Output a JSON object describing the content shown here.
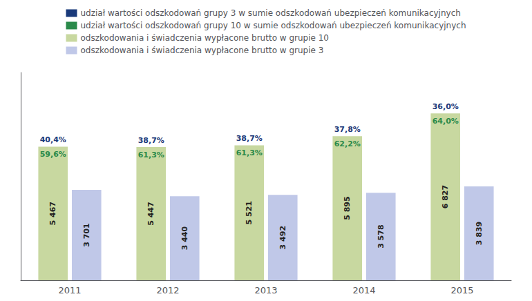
{
  "chart_data": {
    "type": "bar",
    "categories": [
      "2011",
      "2012",
      "2013",
      "2014",
      "2015"
    ],
    "series": [
      {
        "name": "udział wartości odszkodowań grupy 3 w sumie odszkodowań ubezpieczeń komunikacyjnych",
        "type": "text",
        "color": "#1a3a7a",
        "values": [
          40.4,
          38.7,
          38.7,
          37.8,
          36.0
        ],
        "value_labels": [
          "40,4%",
          "38,7%",
          "38,7%",
          "37,8%",
          "36,0%"
        ]
      },
      {
        "name": "udział wartości odszkodowań grupy 10 w sumie odszkodowań ubezpieczeń komunikacyjnych",
        "type": "text",
        "color": "#2a8a4a",
        "values": [
          59.6,
          61.3,
          61.3,
          62.2,
          64.0
        ],
        "value_labels": [
          "59,6%",
          "61,3%",
          "61,3%",
          "62,2%",
          "64,0%"
        ]
      },
      {
        "name": "odszkodowania i świadczenia wypłacone brutto w grupie 10",
        "type": "bar",
        "color": "#c8d8a0",
        "values": [
          5467,
          5447,
          5521,
          5895,
          6827
        ],
        "value_labels": [
          "5 467",
          "5 447",
          "5 521",
          "5 895",
          "6 827"
        ]
      },
      {
        "name": "odszkodowania i świadczenia wypłacone brutto w grupie 3",
        "type": "bar",
        "color": "#c0c8e8",
        "values": [
          3701,
          3440,
          3492,
          3578,
          3839
        ],
        "value_labels": [
          "3 701",
          "3 440",
          "3 492",
          "3 578",
          "3 839"
        ]
      }
    ],
    "ylim": [
      0,
      8500
    ],
    "grid": false,
    "legend": "top",
    "tick_labels": "x",
    "data_labels": true
  }
}
